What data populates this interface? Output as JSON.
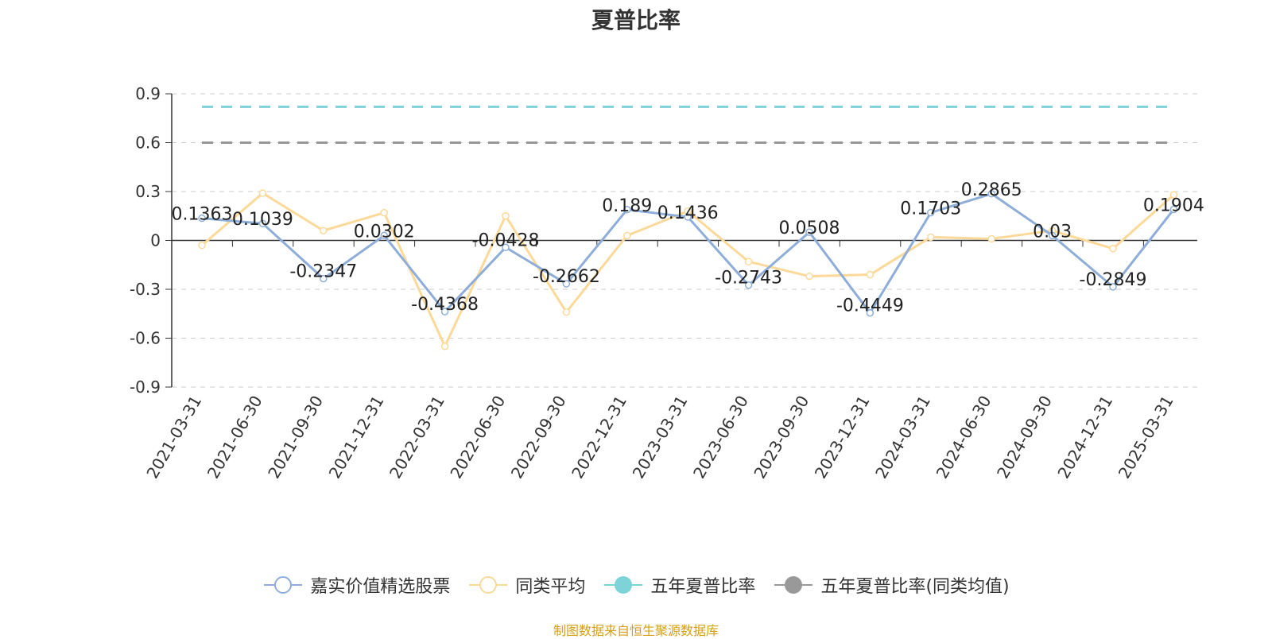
{
  "title": "夏普比率",
  "source": "制图数据来自恒生聚源数据库",
  "chart_data": {
    "type": "line",
    "title": "夏普比率",
    "categories": [
      "2021-03-31",
      "2021-06-30",
      "2021-09-30",
      "2021-12-31",
      "2022-03-31",
      "2022-06-30",
      "2022-09-30",
      "2022-12-31",
      "2023-03-31",
      "2023-06-30",
      "2023-09-30",
      "2023-12-31",
      "2024-03-31",
      "2024-06-30",
      "2024-09-30",
      "2024-12-31",
      "2025-03-31"
    ],
    "ylim": [
      -0.9,
      0.9
    ],
    "yticks": [
      -0.9,
      -0.6,
      -0.3,
      0,
      0.3,
      0.6,
      0.9
    ],
    "grid": true,
    "legend_position": "bottom",
    "series": [
      {
        "name": "嘉实价值精选股票",
        "color": "#8eaed9",
        "values": [
          0.1363,
          0.1039,
          -0.2347,
          0.0302,
          -0.4368,
          -0.0428,
          -0.2662,
          0.189,
          0.1436,
          -0.2743,
          0.0508,
          -0.4449,
          0.1703,
          0.2865,
          0.03,
          -0.2849,
          0.1904
        ],
        "labels": [
          "0.1363",
          "0.1039",
          "-0.2347",
          "0.0302",
          "-0.4368",
          "-0.0428",
          "-0.2662",
          "0.189",
          "0.1436",
          "-0.2743",
          "0.0508",
          "-0.4449",
          "0.1703",
          "0.2865",
          "0.03",
          "-0.2849",
          "0.1904"
        ]
      },
      {
        "name": "同类平均",
        "color": "#fcd999",
        "values": [
          -0.03,
          0.29,
          0.06,
          0.17,
          -0.65,
          0.15,
          -0.44,
          0.03,
          0.18,
          -0.13,
          -0.22,
          -0.21,
          0.02,
          0.01,
          0.06,
          -0.05,
          0.28
        ]
      },
      {
        "name": "五年夏普比率",
        "color": "#7ed3d8",
        "type": "reference",
        "value": 0.82
      },
      {
        "name": "五年夏普比率(同类均值)",
        "color": "#999999",
        "type": "reference",
        "value": 0.6
      }
    ]
  }
}
